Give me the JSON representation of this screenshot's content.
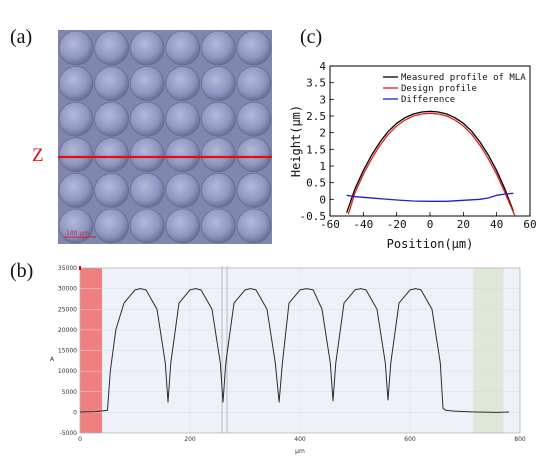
{
  "panels": {
    "a": {
      "label": "(a)",
      "z_label": "Z",
      "scale_bar": "100 µm"
    },
    "b": {
      "label": "(b)"
    },
    "c": {
      "label": "(c)"
    }
  },
  "colors": {
    "measured": "#000000",
    "design": "#e02020",
    "difference": "#2020c8",
    "profile_b": "#2a2a3a",
    "cut_line": "#e01010",
    "micro_bg": "#7f87ad",
    "lens": "#9aa2c8",
    "shade_red": "#f08080",
    "shade_green": "#dfe8d8",
    "plot_bg_b": "#eef1f8"
  },
  "chart_data": [
    {
      "id": "c",
      "type": "line",
      "title": "",
      "xlabel": "Position(μm)",
      "ylabel": "Height(μm)",
      "xlim": [
        -60,
        60
      ],
      "ylim": [
        -0.5,
        4
      ],
      "xticks": [
        "-60",
        "-40",
        "-20",
        "0",
        "20",
        "40",
        "60"
      ],
      "yticks": [
        "-0.5",
        "0",
        "0.5",
        "1",
        "1.5",
        "2",
        "2.5",
        "3",
        "3.5",
        "4"
      ],
      "legend_position": "top-right",
      "series": [
        {
          "name": "Measured profile of MLA",
          "x": [
            -50,
            -45,
            -40,
            -35,
            -30,
            -25,
            -20,
            -15,
            -10,
            -5,
            0,
            5,
            10,
            15,
            20,
            25,
            30,
            35,
            40,
            45,
            50
          ],
          "y": [
            -0.4,
            0.32,
            0.86,
            1.33,
            1.72,
            2.04,
            2.28,
            2.45,
            2.56,
            2.62,
            2.64,
            2.62,
            2.56,
            2.45,
            2.28,
            2.04,
            1.72,
            1.33,
            0.86,
            0.3,
            -0.35
          ]
        },
        {
          "name": "Design profile",
          "x": [
            -49,
            -45,
            -40,
            -35,
            -30,
            -25,
            -20,
            -15,
            -10,
            -5,
            0,
            5,
            10,
            15,
            20,
            25,
            30,
            35,
            40,
            45,
            51
          ],
          "y": [
            -0.45,
            0.2,
            0.75,
            1.22,
            1.62,
            1.95,
            2.2,
            2.38,
            2.5,
            2.56,
            2.58,
            2.56,
            2.5,
            2.38,
            2.2,
            1.95,
            1.62,
            1.22,
            0.75,
            0.2,
            -0.5
          ]
        },
        {
          "name": "Difference",
          "x": [
            -50,
            -45,
            -40,
            -30,
            -20,
            -10,
            0,
            10,
            20,
            30,
            35,
            40,
            45,
            50
          ],
          "y": [
            0.12,
            0.08,
            0.06,
            0.02,
            -0.02,
            -0.05,
            -0.06,
            -0.06,
            -0.03,
            0.0,
            0.04,
            0.12,
            0.16,
            0.18
          ]
        }
      ]
    },
    {
      "id": "b",
      "type": "line",
      "title": "",
      "xlabel": "µm",
      "ylabel": "A",
      "xlim": [
        0,
        800
      ],
      "ylim": [
        -5000,
        35000
      ],
      "xticks": [
        "0",
        "200",
        "400",
        "600",
        "800"
      ],
      "yticks": [
        "-5000",
        "0",
        "5000",
        "10000",
        "15000",
        "20000",
        "25000",
        "30000",
        "35000"
      ],
      "shaded_regions": [
        {
          "x0": 0,
          "x1": 40,
          "color": "red"
        },
        {
          "x0": 715,
          "x1": 770,
          "color": "green"
        }
      ],
      "series": [
        {
          "name": "",
          "x": [
            0,
            30,
            50,
            55,
            65,
            80,
            100,
            110,
            120,
            140,
            155,
            160,
            165,
            180,
            200,
            210,
            220,
            240,
            255,
            260,
            265,
            280,
            300,
            310,
            320,
            340,
            355,
            362,
            368,
            380,
            400,
            412,
            424,
            440,
            455,
            460,
            465,
            480,
            500,
            510,
            520,
            540,
            555,
            560,
            565,
            580,
            600,
            610,
            620,
            640,
            655,
            660,
            665,
            680,
            700,
            720,
            760,
            780
          ],
          "y": [
            100,
            200,
            500,
            10000,
            20000,
            26500,
            29700,
            30000,
            29700,
            25000,
            12000,
            2500,
            12000,
            26500,
            29700,
            30000,
            29700,
            25000,
            12000,
            2500,
            12000,
            26500,
            29700,
            30000,
            29700,
            25000,
            12000,
            2500,
            12000,
            26500,
            29700,
            30000,
            29700,
            25000,
            12000,
            2800,
            12000,
            26500,
            29700,
            30000,
            29700,
            25000,
            12000,
            3000,
            12000,
            26500,
            29700,
            30000,
            29700,
            25000,
            12000,
            1000,
            500,
            300,
            200,
            100,
            0,
            100
          ]
        }
      ]
    }
  ]
}
